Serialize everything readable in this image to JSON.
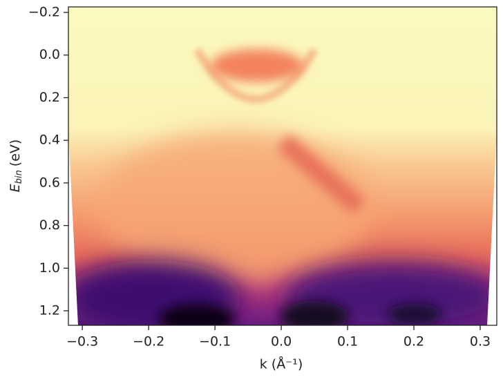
{
  "chart_data": {
    "type": "heatmap",
    "xlabel": "k (Å⁻¹)",
    "ylabel": {
      "symbol": "E",
      "subscript": "bin",
      "unit": "(eV)"
    },
    "xlim": [
      -0.321,
      0.325
    ],
    "ylim": [
      -0.226,
      1.268
    ],
    "y_inverted": true,
    "xticks": [
      {
        "value": -0.3,
        "label": "−0.3"
      },
      {
        "value": -0.2,
        "label": "−0.2"
      },
      {
        "value": -0.1,
        "label": "−0.1"
      },
      {
        "value": 0,
        "label": "0.0"
      },
      0.1,
      0.2,
      0.3
    ],
    "yticks": [
      {
        "value": -0.2,
        "label": "−0.2"
      },
      {
        "value": 0,
        "label": "0.0"
      },
      0.2,
      0.4,
      0.6,
      0.8,
      {
        "value": 1,
        "label": "1.0"
      },
      1.2
    ],
    "colormap": "magma"
  }
}
